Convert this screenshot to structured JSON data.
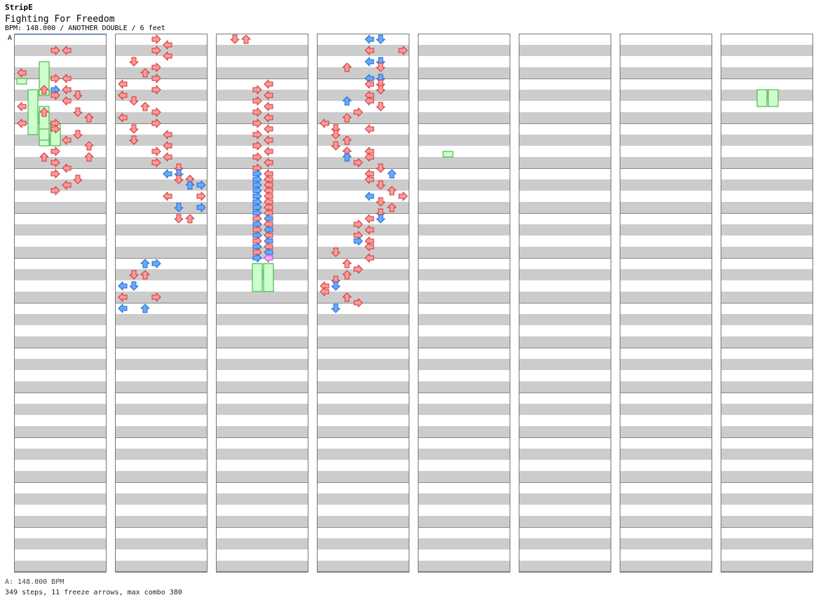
{
  "header": {
    "brand": "StripE",
    "title": "Fighting For Freedom",
    "info": "BPM: 148.000 / ANOTHER DOUBLE / 6 feet"
  },
  "marker_label": "A",
  "footer": {
    "bpm_line": "A: 148.000 BPM",
    "stats": "349 steps, 11 freeze arrows, max combo 380"
  },
  "colors": {
    "stripe": "#cccccc",
    "arrow_red": "#ff9999",
    "arrow_red_stroke": "#cc3333",
    "arrow_blue": "#66aaff",
    "arrow_blue_stroke": "#2266cc",
    "arrow_pink": "#ffaaff",
    "arrow_pink_stroke": "#bb44bb",
    "freeze_fill": "#ccffcc",
    "freeze_stroke": "#33aa33",
    "marker_line": "#3366cc"
  },
  "chart_data": {
    "type": "step-chart",
    "song": "Fighting For Freedom",
    "bpm": 148.0,
    "difficulty": "ANOTHER DOUBLE",
    "rating": "6 feet",
    "lanes": [
      "L",
      "D",
      "U",
      "R",
      "L2",
      "D2",
      "U2",
      "R2"
    ],
    "measures_per_column": 12,
    "columns": 8,
    "rows_per_measure": 16,
    "note_kinds": [
      "quarter",
      "eighth",
      "sixteenth"
    ],
    "notes": [
      [
        0,
        2,
        3,
        "quarter"
      ],
      [
        0,
        2,
        4,
        "quarter"
      ],
      [
        0,
        6,
        0,
        "quarter"
      ],
      [
        0,
        7,
        3,
        "quarter"
      ],
      [
        0,
        7,
        4,
        "quarter"
      ],
      [
        0,
        9,
        2,
        "quarter"
      ],
      [
        0,
        9,
        3,
        "eighth"
      ],
      [
        0,
        9,
        4,
        "quarter"
      ],
      [
        0,
        10,
        3,
        "quarter"
      ],
      [
        0,
        10,
        5,
        "quarter"
      ],
      [
        0,
        11,
        4,
        "quarter"
      ],
      [
        0,
        12,
        0,
        "quarter"
      ],
      [
        0,
        13,
        2,
        "quarter"
      ],
      [
        0,
        13,
        5,
        "quarter"
      ],
      [
        0,
        14,
        6,
        "quarter"
      ],
      [
        0,
        15,
        0,
        "quarter"
      ],
      [
        0,
        15,
        3,
        "quarter"
      ],
      [
        0,
        16,
        3,
        "quarter"
      ],
      [
        0,
        17,
        5,
        "quarter"
      ],
      [
        0,
        18,
        4,
        "quarter"
      ],
      [
        0,
        19,
        6,
        "quarter"
      ],
      [
        0,
        20,
        3,
        "quarter"
      ],
      [
        0,
        21,
        2,
        "quarter"
      ],
      [
        0,
        21,
        6,
        "quarter"
      ],
      [
        0,
        22,
        3,
        "quarter"
      ],
      [
        0,
        23,
        4,
        "quarter"
      ],
      [
        0,
        24,
        3,
        "quarter"
      ],
      [
        0,
        25,
        5,
        "quarter"
      ],
      [
        0,
        26,
        4,
        "quarter"
      ],
      [
        0,
        27,
        3,
        "quarter"
      ],
      [
        1,
        0,
        3,
        "quarter"
      ],
      [
        1,
        1,
        4,
        "quarter"
      ],
      [
        1,
        2,
        3,
        "quarter"
      ],
      [
        1,
        3,
        4,
        "quarter"
      ],
      [
        1,
        4,
        1,
        "quarter"
      ],
      [
        1,
        5,
        3,
        "quarter"
      ],
      [
        1,
        6,
        2,
        "quarter"
      ],
      [
        1,
        7,
        3,
        "quarter"
      ],
      [
        1,
        8,
        0,
        "quarter"
      ],
      [
        1,
        9,
        3,
        "quarter"
      ],
      [
        1,
        10,
        0,
        "quarter"
      ],
      [
        1,
        11,
        1,
        "quarter"
      ],
      [
        1,
        12,
        2,
        "quarter"
      ],
      [
        1,
        13,
        3,
        "quarter"
      ],
      [
        1,
        14,
        0,
        "quarter"
      ],
      [
        1,
        15,
        3,
        "quarter"
      ],
      [
        1,
        16,
        1,
        "quarter"
      ],
      [
        1,
        17,
        4,
        "quarter"
      ],
      [
        1,
        18,
        1,
        "quarter"
      ],
      [
        1,
        19,
        4,
        "quarter"
      ],
      [
        1,
        20,
        3,
        "quarter"
      ],
      [
        1,
        21,
        4,
        "quarter"
      ],
      [
        1,
        22,
        3,
        "quarter"
      ],
      [
        1,
        23,
        5,
        "quarter"
      ],
      [
        1,
        24,
        4,
        "eighth"
      ],
      [
        1,
        24,
        5,
        "eighth"
      ],
      [
        1,
        25,
        5,
        "quarter"
      ],
      [
        1,
        25,
        6,
        "quarter"
      ],
      [
        1,
        26,
        6,
        "eighth"
      ],
      [
        1,
        26,
        7,
        "eighth"
      ],
      [
        1,
        28,
        4,
        "quarter"
      ],
      [
        1,
        28,
        7,
        "quarter"
      ],
      [
        1,
        30,
        5,
        "eighth"
      ],
      [
        1,
        30,
        7,
        "eighth"
      ],
      [
        1,
        32,
        5,
        "quarter"
      ],
      [
        1,
        32,
        6,
        "quarter"
      ],
      [
        1,
        40,
        2,
        "eighth"
      ],
      [
        1,
        40,
        3,
        "eighth"
      ],
      [
        1,
        42,
        1,
        "quarter"
      ],
      [
        1,
        42,
        2,
        "quarter"
      ],
      [
        1,
        44,
        0,
        "eighth"
      ],
      [
        1,
        44,
        1,
        "eighth"
      ],
      [
        1,
        46,
        0,
        "quarter"
      ],
      [
        1,
        46,
        3,
        "quarter"
      ],
      [
        1,
        48,
        0,
        "eighth"
      ],
      [
        1,
        48,
        2,
        "eighth"
      ],
      [
        2,
        0,
        1,
        "quarter"
      ],
      [
        2,
        0,
        2,
        "quarter"
      ],
      [
        2,
        8,
        4,
        "quarter"
      ],
      [
        2,
        9,
        3,
        "quarter"
      ],
      [
        2,
        10,
        4,
        "quarter"
      ],
      [
        2,
        11,
        3,
        "quarter"
      ],
      [
        2,
        12,
        4,
        "quarter"
      ],
      [
        2,
        13,
        3,
        "quarter"
      ],
      [
        2,
        14,
        4,
        "quarter"
      ],
      [
        2,
        15,
        3,
        "quarter"
      ],
      [
        2,
        16,
        4,
        "quarter"
      ],
      [
        2,
        17,
        3,
        "quarter"
      ],
      [
        2,
        18,
        4,
        "quarter"
      ],
      [
        2,
        19,
        3,
        "quarter"
      ],
      [
        2,
        20,
        4,
        "quarter"
      ],
      [
        2,
        21,
        3,
        "quarter"
      ],
      [
        2,
        22,
        4,
        "quarter"
      ],
      [
        2,
        23,
        3,
        "quarter"
      ],
      [
        2,
        24,
        3,
        "eighth"
      ],
      [
        2,
        24,
        4,
        "quarter"
      ],
      [
        2,
        25,
        3,
        "eighth"
      ],
      [
        2,
        25,
        4,
        "quarter"
      ],
      [
        2,
        26,
        3,
        "eighth"
      ],
      [
        2,
        26,
        4,
        "quarter"
      ],
      [
        2,
        27,
        3,
        "eighth"
      ],
      [
        2,
        27,
        4,
        "quarter"
      ],
      [
        2,
        28,
        3,
        "eighth"
      ],
      [
        2,
        28,
        4,
        "quarter"
      ],
      [
        2,
        29,
        3,
        "eighth"
      ],
      [
        2,
        29,
        4,
        "quarter"
      ],
      [
        2,
        30,
        3,
        "eighth"
      ],
      [
        2,
        30,
        4,
        "quarter"
      ],
      [
        2,
        31,
        3,
        "eighth"
      ],
      [
        2,
        31,
        4,
        "quarter"
      ],
      [
        2,
        32,
        3,
        "quarter"
      ],
      [
        2,
        32,
        4,
        "eighth"
      ],
      [
        2,
        33,
        3,
        "eighth"
      ],
      [
        2,
        33,
        4,
        "quarter"
      ],
      [
        2,
        34,
        3,
        "quarter"
      ],
      [
        2,
        34,
        4,
        "eighth"
      ],
      [
        2,
        35,
        3,
        "eighth"
      ],
      [
        2,
        35,
        4,
        "quarter"
      ],
      [
        2,
        36,
        3,
        "quarter"
      ],
      [
        2,
        36,
        4,
        "eighth"
      ],
      [
        2,
        37,
        3,
        "eighth"
      ],
      [
        2,
        37,
        4,
        "quarter"
      ],
      [
        2,
        38,
        3,
        "quarter"
      ],
      [
        2,
        38,
        4,
        "eighth"
      ],
      [
        2,
        39,
        3,
        "eighth"
      ],
      [
        2,
        39,
        4,
        "sixteenth"
      ],
      [
        3,
        0,
        4,
        "eighth"
      ],
      [
        3,
        0,
        5,
        "eighth"
      ],
      [
        3,
        2,
        4,
        "quarter"
      ],
      [
        3,
        2,
        7,
        "quarter"
      ],
      [
        3,
        4,
        4,
        "eighth"
      ],
      [
        3,
        4,
        5,
        "eighth"
      ],
      [
        3,
        5,
        2,
        "quarter"
      ],
      [
        3,
        5,
        5,
        "quarter"
      ],
      [
        3,
        7,
        4,
        "eighth"
      ],
      [
        3,
        7,
        5,
        "eighth"
      ],
      [
        3,
        8,
        4,
        "quarter"
      ],
      [
        3,
        8,
        5,
        "quarter"
      ],
      [
        3,
        9,
        5,
        "quarter"
      ],
      [
        3,
        10,
        4,
        "quarter"
      ],
      [
        3,
        11,
        2,
        "eighth"
      ],
      [
        3,
        11,
        4,
        "quarter"
      ],
      [
        3,
        12,
        5,
        "quarter"
      ],
      [
        3,
        13,
        3,
        "quarter"
      ],
      [
        3,
        14,
        2,
        "quarter"
      ],
      [
        3,
        15,
        0,
        "quarter"
      ],
      [
        3,
        16,
        1,
        "quarter"
      ],
      [
        3,
        16,
        4,
        "quarter"
      ],
      [
        3,
        17,
        1,
        "quarter"
      ],
      [
        3,
        18,
        2,
        "quarter"
      ],
      [
        3,
        19,
        1,
        "quarter"
      ],
      [
        3,
        20,
        2,
        "quarter"
      ],
      [
        3,
        20,
        4,
        "quarter"
      ],
      [
        3,
        21,
        2,
        "eighth"
      ],
      [
        3,
        21,
        4,
        "quarter"
      ],
      [
        3,
        22,
        3,
        "quarter"
      ],
      [
        3,
        23,
        5,
        "quarter"
      ],
      [
        3,
        24,
        4,
        "quarter"
      ],
      [
        3,
        24,
        6,
        "eighth"
      ],
      [
        3,
        25,
        4,
        "quarter"
      ],
      [
        3,
        26,
        5,
        "quarter"
      ],
      [
        3,
        27,
        6,
        "quarter"
      ],
      [
        3,
        28,
        7,
        "quarter"
      ],
      [
        3,
        28,
        4,
        "eighth"
      ],
      [
        3,
        29,
        5,
        "quarter"
      ],
      [
        3,
        30,
        6,
        "quarter"
      ],
      [
        3,
        31,
        5,
        "quarter"
      ],
      [
        3,
        32,
        4,
        "quarter"
      ],
      [
        3,
        32,
        5,
        "eighth"
      ],
      [
        3,
        33,
        3,
        "quarter"
      ],
      [
        3,
        34,
        4,
        "quarter"
      ],
      [
        3,
        35,
        3,
        "quarter"
      ],
      [
        3,
        36,
        3,
        "eighth"
      ],
      [
        3,
        36,
        4,
        "quarter"
      ],
      [
        3,
        37,
        4,
        "quarter"
      ],
      [
        3,
        38,
        1,
        "quarter"
      ],
      [
        3,
        39,
        4,
        "quarter"
      ],
      [
        3,
        40,
        2,
        "quarter"
      ],
      [
        3,
        41,
        3,
        "quarter"
      ],
      [
        3,
        42,
        2,
        "quarter"
      ],
      [
        3,
        43,
        1,
        "quarter"
      ],
      [
        3,
        44,
        0,
        "quarter"
      ],
      [
        3,
        44,
        1,
        "eighth"
      ],
      [
        3,
        45,
        0,
        "quarter"
      ],
      [
        3,
        46,
        2,
        "quarter"
      ],
      [
        3,
        47,
        3,
        "quarter"
      ],
      [
        3,
        48,
        1,
        "eighth"
      ]
    ],
    "freezes": [
      [
        0,
        4,
        2,
        10
      ],
      [
        0,
        7,
        0,
        8
      ],
      [
        0,
        9,
        1,
        17
      ],
      [
        0,
        12,
        2,
        19
      ],
      [
        0,
        15,
        3,
        19
      ],
      [
        0,
        16,
        2,
        18
      ],
      [
        2,
        40,
        3,
        45
      ],
      [
        2,
        40,
        4,
        45
      ],
      [
        7,
        9,
        3,
        12
      ],
      [
        7,
        9,
        4,
        12
      ],
      [
        4,
        20,
        2,
        21
      ]
    ]
  }
}
